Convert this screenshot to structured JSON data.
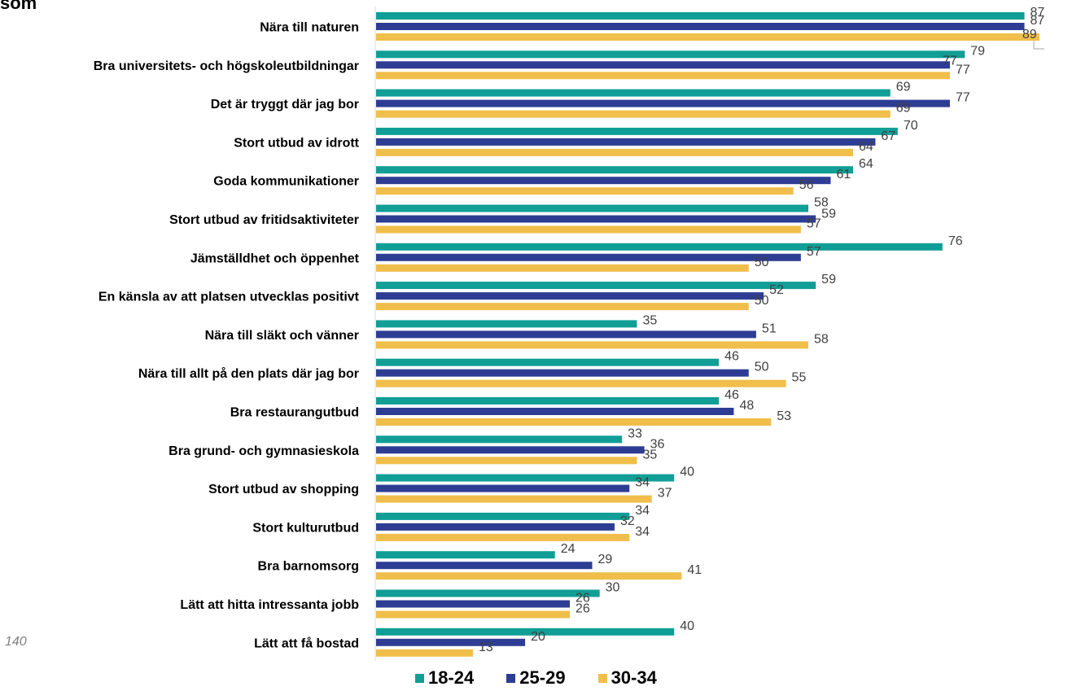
{
  "page": {
    "partial_title": "som",
    "page_number": "140"
  },
  "chart_data": {
    "type": "bar",
    "orientation": "horizontal",
    "categories": [
      "Nära till naturen",
      "Bra universitets- och högskoleutbildningar",
      "Det är tryggt där jag bor",
      "Stort utbud av idrott",
      "Goda kommunikationer",
      "Stort utbud av fritidsaktiviteter",
      "Jämställdhet och öppenhet",
      "En känsla av att platsen utvecklas positivt",
      "Nära till släkt och vänner",
      "Nära till allt på den plats där jag bor",
      "Bra restaurangutbud",
      "Bra grund- och gymnasieskola",
      "Stort utbud av shopping",
      "Stort kulturutbud",
      "Bra barnomsorg",
      "Lätt att hitta intressanta jobb",
      "Lätt att få bostad"
    ],
    "series": [
      {
        "name": "18-24",
        "color": "#109E96",
        "values": [
          87,
          79,
          69,
          70,
          64,
          58,
          76,
          59,
          35,
          46,
          46,
          33,
          40,
          34,
          24,
          30,
          40
        ]
      },
      {
        "name": "25-29",
        "color": "#2E3D94",
        "values": [
          87,
          77,
          77,
          67,
          61,
          59,
          57,
          52,
          51,
          50,
          48,
          36,
          34,
          32,
          29,
          26,
          20
        ]
      },
      {
        "name": "30-34",
        "color": "#F0BE4A",
        "values": [
          89,
          77,
          69,
          64,
          56,
          57,
          50,
          50,
          58,
          55,
          53,
          35,
          37,
          34,
          41,
          26,
          13
        ]
      }
    ],
    "xlim": [
      0,
      90
    ],
    "grid": false,
    "data_labels": true,
    "legend": "bottom"
  }
}
